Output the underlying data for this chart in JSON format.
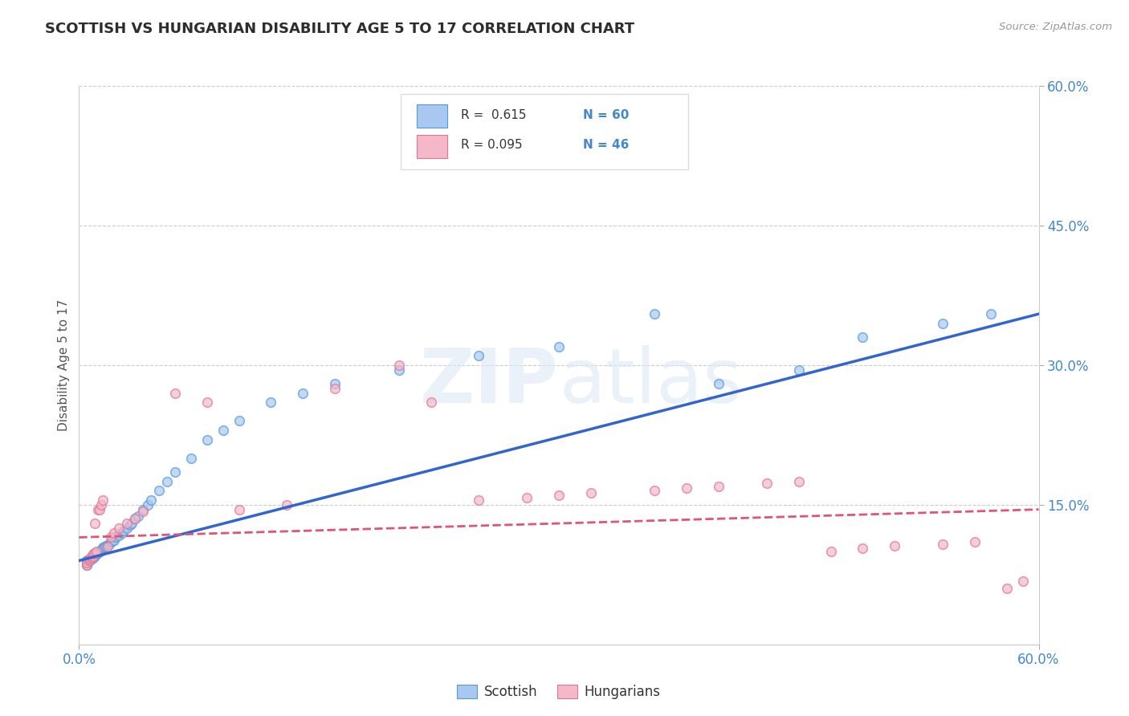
{
  "title": "SCOTTISH VS HUNGARIAN DISABILITY AGE 5 TO 17 CORRELATION CHART",
  "source_text": "Source: ZipAtlas.com",
  "ylabel": "Disability Age 5 to 17",
  "xlim": [
    0.0,
    0.6
  ],
  "ylim": [
    0.0,
    0.6
  ],
  "y_tick_values": [
    0.15,
    0.3,
    0.45,
    0.6
  ],
  "grid_color": "#cccccc",
  "background_color": "#ffffff",
  "title_fontsize": 13,
  "title_color": "#2d2d2d",
  "watermark_text": "ZIPatlas",
  "scottish_color": "#a8c8f0",
  "hungarian_color": "#f4b8c8",
  "scottish_edge_color": "#5599dd",
  "hungarian_edge_color": "#dd7799",
  "scottish_line_color": "#3366cc",
  "hungarian_line_color": "#dd5577",
  "scottish_x": [
    0.005,
    0.005,
    0.005,
    0.007,
    0.007,
    0.008,
    0.008,
    0.009,
    0.009,
    0.01,
    0.01,
    0.01,
    0.011,
    0.011,
    0.012,
    0.012,
    0.013,
    0.013,
    0.014,
    0.014,
    0.015,
    0.015,
    0.016,
    0.017,
    0.018,
    0.019,
    0.02,
    0.021,
    0.022,
    0.023,
    0.025,
    0.027,
    0.028,
    0.03,
    0.032,
    0.033,
    0.035,
    0.037,
    0.04,
    0.043,
    0.045,
    0.05,
    0.055,
    0.06,
    0.07,
    0.08,
    0.09,
    0.1,
    0.12,
    0.14,
    0.16,
    0.2,
    0.25,
    0.3,
    0.36,
    0.4,
    0.45,
    0.49,
    0.54,
    0.57
  ],
  "scottish_y": [
    0.085,
    0.088,
    0.09,
    0.09,
    0.092,
    0.092,
    0.093,
    0.093,
    0.095,
    0.095,
    0.096,
    0.097,
    0.097,
    0.098,
    0.098,
    0.099,
    0.1,
    0.1,
    0.101,
    0.102,
    0.103,
    0.104,
    0.105,
    0.106,
    0.107,
    0.108,
    0.11,
    0.111,
    0.112,
    0.115,
    0.117,
    0.12,
    0.122,
    0.125,
    0.128,
    0.13,
    0.135,
    0.138,
    0.145,
    0.15,
    0.155,
    0.165,
    0.175,
    0.185,
    0.2,
    0.22,
    0.23,
    0.24,
    0.26,
    0.27,
    0.28,
    0.295,
    0.31,
    0.32,
    0.355,
    0.28,
    0.295,
    0.33,
    0.345,
    0.355
  ],
  "hungarian_x": [
    0.005,
    0.005,
    0.006,
    0.007,
    0.007,
    0.008,
    0.008,
    0.009,
    0.009,
    0.01,
    0.01,
    0.011,
    0.012,
    0.013,
    0.014,
    0.015,
    0.018,
    0.02,
    0.022,
    0.025,
    0.03,
    0.035,
    0.04,
    0.06,
    0.08,
    0.1,
    0.13,
    0.16,
    0.2,
    0.22,
    0.25,
    0.28,
    0.3,
    0.32,
    0.36,
    0.38,
    0.4,
    0.43,
    0.45,
    0.47,
    0.49,
    0.51,
    0.54,
    0.56,
    0.58,
    0.59
  ],
  "hungarian_y": [
    0.085,
    0.088,
    0.09,
    0.09,
    0.092,
    0.093,
    0.095,
    0.095,
    0.097,
    0.098,
    0.13,
    0.1,
    0.145,
    0.145,
    0.15,
    0.155,
    0.105,
    0.115,
    0.12,
    0.125,
    0.13,
    0.135,
    0.143,
    0.27,
    0.26,
    0.145,
    0.15,
    0.275,
    0.3,
    0.26,
    0.155,
    0.158,
    0.16,
    0.163,
    0.165,
    0.168,
    0.17,
    0.173,
    0.175,
    0.1,
    0.103,
    0.106,
    0.108,
    0.11,
    0.06,
    0.068
  ]
}
